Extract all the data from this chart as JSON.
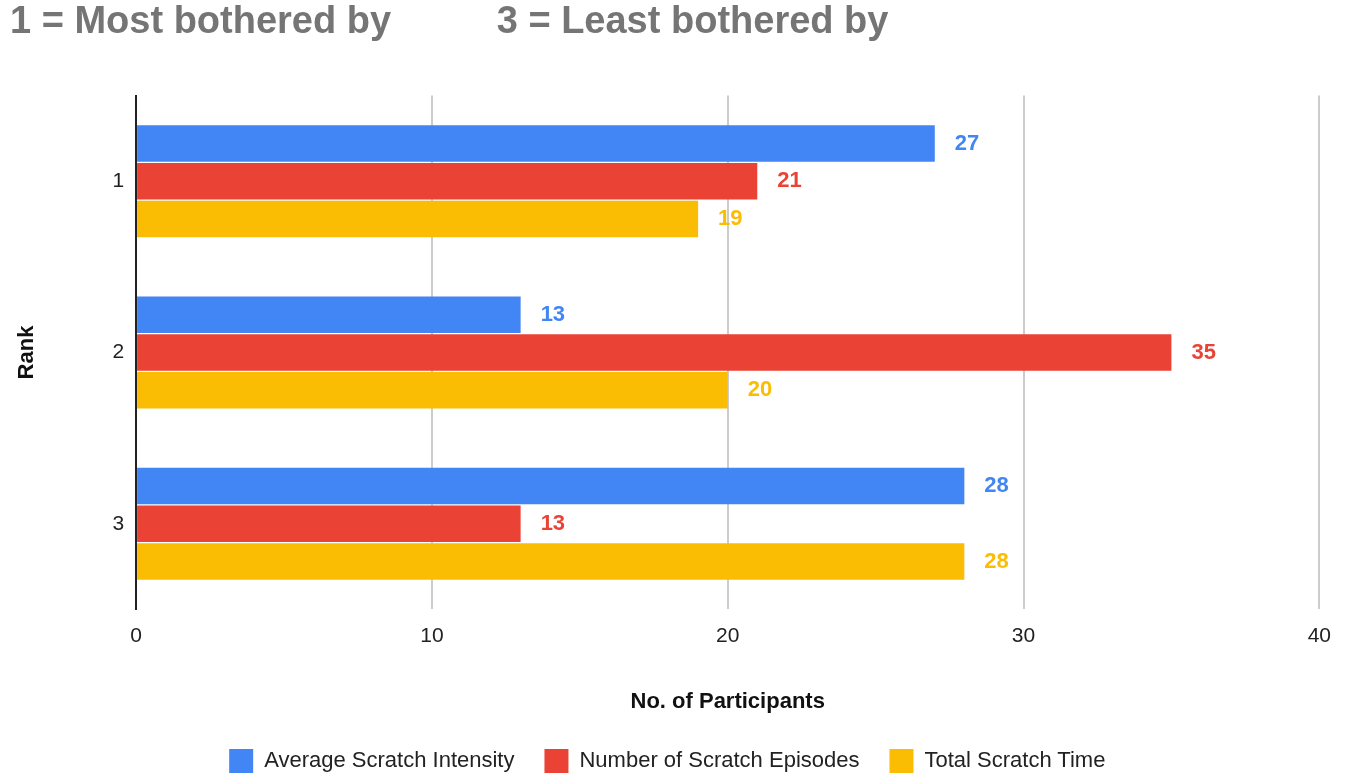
{
  "chart_data": {
    "type": "bar",
    "orientation": "horizontal",
    "title": "1 = Most bothered by          3 = Least bothered by",
    "xlabel": "No. of Participants",
    "ylabel": "Rank",
    "categories": [
      "1",
      "2",
      "3"
    ],
    "series": [
      {
        "name": "Average Scratch Intensity",
        "color": "#4285f4",
        "values": [
          27,
          13,
          28
        ]
      },
      {
        "name": "Number of Scratch Episodes",
        "color": "#ea4335",
        "values": [
          21,
          35,
          13
        ]
      },
      {
        "name": "Total Scratch Time",
        "color": "#fbbc04",
        "values": [
          19,
          20,
          28
        ]
      }
    ],
    "xlim": [
      0,
      40
    ],
    "xticks": [
      0,
      10,
      20,
      30,
      40
    ],
    "grid": "x",
    "legend": "bottom",
    "data_labels": true
  }
}
